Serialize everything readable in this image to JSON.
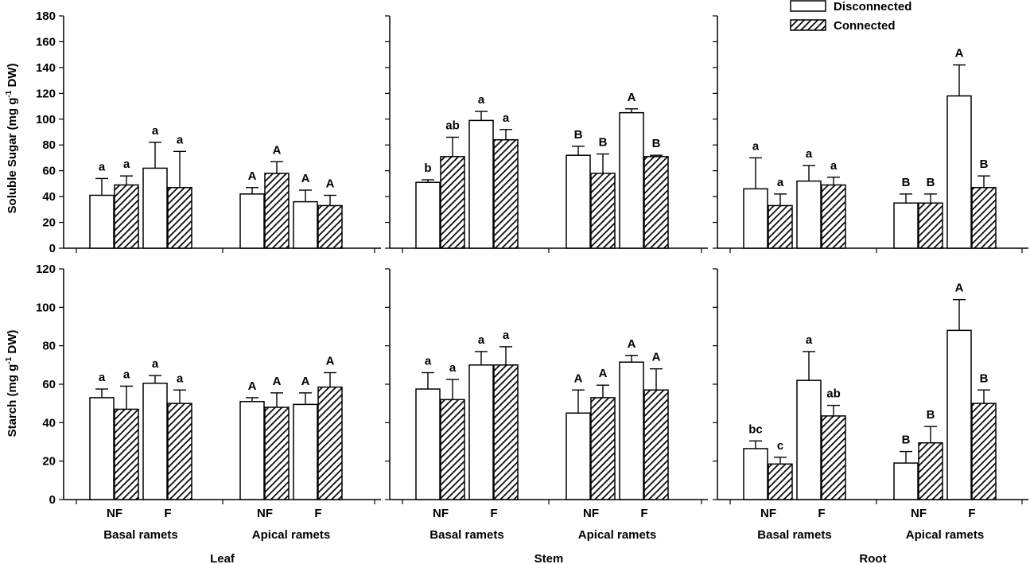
{
  "legend": {
    "items": [
      {
        "label": "Disconnected",
        "pattern": "open"
      },
      {
        "label": "Connected",
        "pattern": "hatched"
      }
    ]
  },
  "axes": {
    "top_ylabel_main": "Soluble Sugar (mg g",
    "top_ylabel_sup": "-1",
    "top_ylabel_end": " DW)",
    "bottom_ylabel_main": "Starch (mg g",
    "bottom_ylabel_sup": "-1",
    "bottom_ylabel_end": " DW)",
    "top_yticks": [
      "0",
      "20",
      "40",
      "60",
      "80",
      "100",
      "120",
      "140",
      "160",
      "180"
    ],
    "bottom_yticks": [
      "0",
      "20",
      "40",
      "60",
      "80",
      "100",
      "120"
    ]
  },
  "panels": {
    "titles": [
      "Leaf",
      "Stem",
      "Root"
    ],
    "group_labels": [
      "Basal ramets",
      "Apical ramets"
    ],
    "treatment_labels": [
      "NF",
      "F"
    ]
  },
  "chart_data": [
    {
      "type": "bar",
      "title": "Leaf",
      "ylabel": "Soluble Sugar (mg g-1 DW)",
      "ylim": [
        0,
        180
      ],
      "groups": [
        "Basal ramets",
        "Apical ramets"
      ],
      "treatments": [
        "NF",
        "F"
      ],
      "series": [
        {
          "name": "Disconnected",
          "values": [
            41,
            62,
            42,
            36
          ],
          "errors": [
            13,
            20,
            5,
            9
          ],
          "labels": [
            "a",
            "a",
            "A",
            "A"
          ]
        },
        {
          "name": "Connected",
          "values": [
            49,
            47,
            58,
            33
          ],
          "errors": [
            7,
            28,
            9,
            8
          ],
          "labels": [
            "a",
            "a",
            "A",
            "A"
          ]
        }
      ]
    },
    {
      "type": "bar",
      "title": "Stem",
      "ylabel": "Soluble Sugar (mg g-1 DW)",
      "ylim": [
        0,
        180
      ],
      "groups": [
        "Basal ramets",
        "Apical ramets"
      ],
      "treatments": [
        "NF",
        "F"
      ],
      "series": [
        {
          "name": "Disconnected",
          "values": [
            51,
            99,
            72,
            105
          ],
          "errors": [
            2,
            7,
            7,
            3
          ],
          "labels": [
            "b",
            "a",
            "B",
            "A"
          ]
        },
        {
          "name": "Connected",
          "values": [
            71,
            84,
            58,
            71
          ],
          "errors": [
            15,
            8,
            15,
            1
          ],
          "labels": [
            "ab",
            "a",
            "B",
            "B"
          ]
        }
      ]
    },
    {
      "type": "bar",
      "title": "Root",
      "ylabel": "Soluble Sugar (mg g-1 DW)",
      "ylim": [
        0,
        180
      ],
      "groups": [
        "Basal ramets",
        "Apical ramets"
      ],
      "treatments": [
        "NF",
        "F"
      ],
      "series": [
        {
          "name": "Disconnected",
          "values": [
            46,
            52,
            35,
            118
          ],
          "errors": [
            24,
            12,
            7,
            24
          ],
          "labels": [
            "a",
            "a",
            "B",
            "A"
          ]
        },
        {
          "name": "Connected",
          "values": [
            33,
            49,
            35,
            47
          ],
          "errors": [
            9,
            6,
            7,
            9
          ],
          "labels": [
            "a",
            "a",
            "B",
            "B"
          ]
        }
      ]
    },
    {
      "type": "bar",
      "title": "Leaf",
      "ylabel": "Starch (mg g-1 DW)",
      "ylim": [
        0,
        120
      ],
      "groups": [
        "Basal ramets",
        "Apical ramets"
      ],
      "treatments": [
        "NF",
        "F"
      ],
      "series": [
        {
          "name": "Disconnected",
          "values": [
            53,
            60.5,
            51,
            49.5
          ],
          "errors": [
            4.5,
            4,
            2,
            6
          ],
          "labels": [
            "a",
            "a",
            "A",
            "A"
          ]
        },
        {
          "name": "Connected",
          "values": [
            47,
            50,
            48,
            58.5
          ],
          "errors": [
            12,
            7,
            7.5,
            7.5
          ],
          "labels": [
            "a",
            "a",
            "A",
            "A"
          ]
        }
      ]
    },
    {
      "type": "bar",
      "title": "Stem",
      "ylabel": "Starch (mg g-1 DW)",
      "ylim": [
        0,
        120
      ],
      "groups": [
        "Basal ramets",
        "Apical ramets"
      ],
      "treatments": [
        "NF",
        "F"
      ],
      "series": [
        {
          "name": "Disconnected",
          "values": [
            57.5,
            70,
            45,
            71.5
          ],
          "errors": [
            8.5,
            7,
            12,
            3.5
          ],
          "labels": [
            "a",
            "a",
            "A",
            "A"
          ]
        },
        {
          "name": "Connected",
          "values": [
            52,
            70,
            53,
            57
          ],
          "errors": [
            10.5,
            9.5,
            6.5,
            11
          ],
          "labels": [
            "a",
            "a",
            "A",
            "A"
          ]
        }
      ]
    },
    {
      "type": "bar",
      "title": "Root",
      "ylabel": "Starch (mg g-1 DW)",
      "ylim": [
        0,
        120
      ],
      "groups": [
        "Basal ramets",
        "Apical ramets"
      ],
      "treatments": [
        "NF",
        "F"
      ],
      "series": [
        {
          "name": "Disconnected",
          "values": [
            26.5,
            62,
            19,
            88
          ],
          "errors": [
            4,
            15,
            6,
            16
          ],
          "labels": [
            "bc",
            "a",
            "B",
            "A"
          ]
        },
        {
          "name": "Connected",
          "values": [
            18.5,
            43.5,
            29.5,
            50
          ],
          "errors": [
            3.5,
            5.5,
            8.5,
            7
          ],
          "labels": [
            "c",
            "ab",
            "B",
            "B"
          ]
        }
      ]
    }
  ]
}
